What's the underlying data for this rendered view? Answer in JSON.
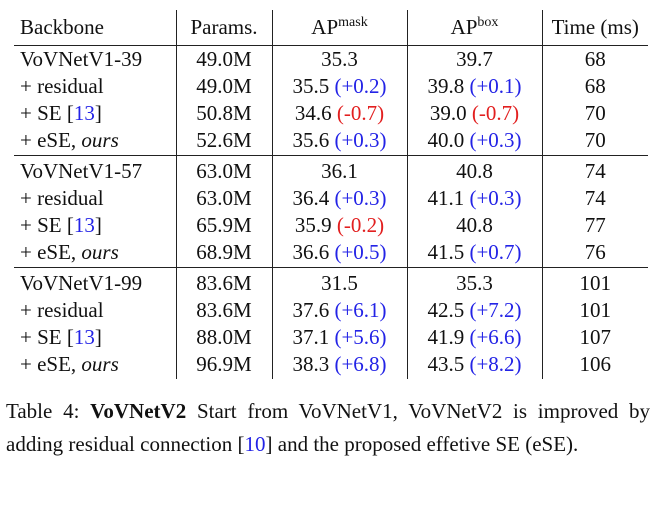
{
  "table": {
    "headers": {
      "backbone": "Backbone",
      "params": "Params.",
      "ap_mask_base": "AP",
      "ap_mask_sup": "mask",
      "ap_box_base": "AP",
      "ap_box_sup": "box",
      "time": "Time (ms)"
    },
    "groups": [
      {
        "rows": [
          {
            "backbone": "VoVNetV1-39",
            "params": "49.0M",
            "ap_mask": "35.3",
            "ap_mask_delta": "",
            "ap_mask_delta_sign": "",
            "ap_box": "39.7",
            "ap_box_delta": "",
            "ap_box_delta_sign": "",
            "time": "68"
          },
          {
            "backbone": "+ residual",
            "params": "49.0M",
            "ap_mask": "35.5",
            "ap_mask_delta": "(+0.2)",
            "ap_mask_delta_sign": "pos",
            "ap_box": "39.8",
            "ap_box_delta": "(+0.1)",
            "ap_box_delta_sign": "pos",
            "time": "68"
          },
          {
            "backbone": "+ SE",
            "backbone_ref": "13",
            "params": "50.8M",
            "ap_mask": "34.6",
            "ap_mask_delta": "(-0.7)",
            "ap_mask_delta_sign": "neg",
            "ap_box": "39.0",
            "ap_box_delta": "(-0.7)",
            "ap_box_delta_sign": "neg",
            "time": "70"
          },
          {
            "backbone": "+ eSE, ",
            "backbone_italic": "ours",
            "params": "52.6M",
            "ap_mask": "35.6",
            "ap_mask_delta": "(+0.3)",
            "ap_mask_delta_sign": "pos",
            "ap_box": "40.0",
            "ap_box_delta": "(+0.3)",
            "ap_box_delta_sign": "pos",
            "time": "70"
          }
        ]
      },
      {
        "rows": [
          {
            "backbone": "VoVNetV1-57",
            "params": "63.0M",
            "ap_mask": "36.1",
            "ap_mask_delta": "",
            "ap_mask_delta_sign": "",
            "ap_box": "40.8",
            "ap_box_delta": "",
            "ap_box_delta_sign": "",
            "time": "74"
          },
          {
            "backbone": "+ residual",
            "params": "63.0M",
            "ap_mask": "36.4",
            "ap_mask_delta": "(+0.3)",
            "ap_mask_delta_sign": "pos",
            "ap_box": "41.1",
            "ap_box_delta": "(+0.3)",
            "ap_box_delta_sign": "pos",
            "time": "74"
          },
          {
            "backbone": "+ SE",
            "backbone_ref": "13",
            "params": "65.9M",
            "ap_mask": "35.9",
            "ap_mask_delta": "(-0.2)",
            "ap_mask_delta_sign": "neg",
            "ap_box": "40.8",
            "ap_box_delta": "",
            "ap_box_delta_sign": "",
            "time": "77"
          },
          {
            "backbone": "+ eSE, ",
            "backbone_italic": "ours",
            "params": "68.9M",
            "ap_mask": "36.6",
            "ap_mask_delta": "(+0.5)",
            "ap_mask_delta_sign": "pos",
            "ap_box": "41.5",
            "ap_box_delta": "(+0.7)",
            "ap_box_delta_sign": "pos",
            "time": "76"
          }
        ]
      },
      {
        "rows": [
          {
            "backbone": "VoVNetV1-99",
            "params": "83.6M",
            "ap_mask": "31.5",
            "ap_mask_delta": "",
            "ap_mask_delta_sign": "",
            "ap_box": "35.3",
            "ap_box_delta": "",
            "ap_box_delta_sign": "",
            "time": "101"
          },
          {
            "backbone": "+ residual",
            "params": "83.6M",
            "ap_mask": "37.6",
            "ap_mask_delta": "(+6.1)",
            "ap_mask_delta_sign": "pos",
            "ap_box": "42.5",
            "ap_box_delta": "(+7.2)",
            "ap_box_delta_sign": "pos",
            "time": "101"
          },
          {
            "backbone": "+ SE",
            "backbone_ref": "13",
            "params": "88.0M",
            "ap_mask": "37.1",
            "ap_mask_delta": "(+5.6)",
            "ap_mask_delta_sign": "pos",
            "ap_box": "41.9",
            "ap_box_delta": "(+6.6)",
            "ap_box_delta_sign": "pos",
            "time": "107"
          },
          {
            "backbone": "+ eSE, ",
            "backbone_italic": "ours",
            "params": "96.9M",
            "ap_mask": "38.3",
            "ap_mask_delta": "(+6.8)",
            "ap_mask_delta_sign": "pos",
            "ap_box": "43.5",
            "ap_box_delta": "(+8.2)",
            "ap_box_delta_sign": "pos",
            "time": "106"
          }
        ]
      }
    ]
  },
  "caption": {
    "label": "Table 4:",
    "title": "VoVNetV2",
    "text_before_ref": "Start from VoVNetV1, VoVNetV2 is improved by adding residual connection",
    "ref": "10",
    "text_after_ref": "and the proposed effetive SE (eSE)."
  },
  "colors": {
    "positive_delta": "#2323e6",
    "negative_delta": "#e21f1f",
    "reference_link": "#2323e6",
    "text": "#111111",
    "rules": "#222222"
  }
}
